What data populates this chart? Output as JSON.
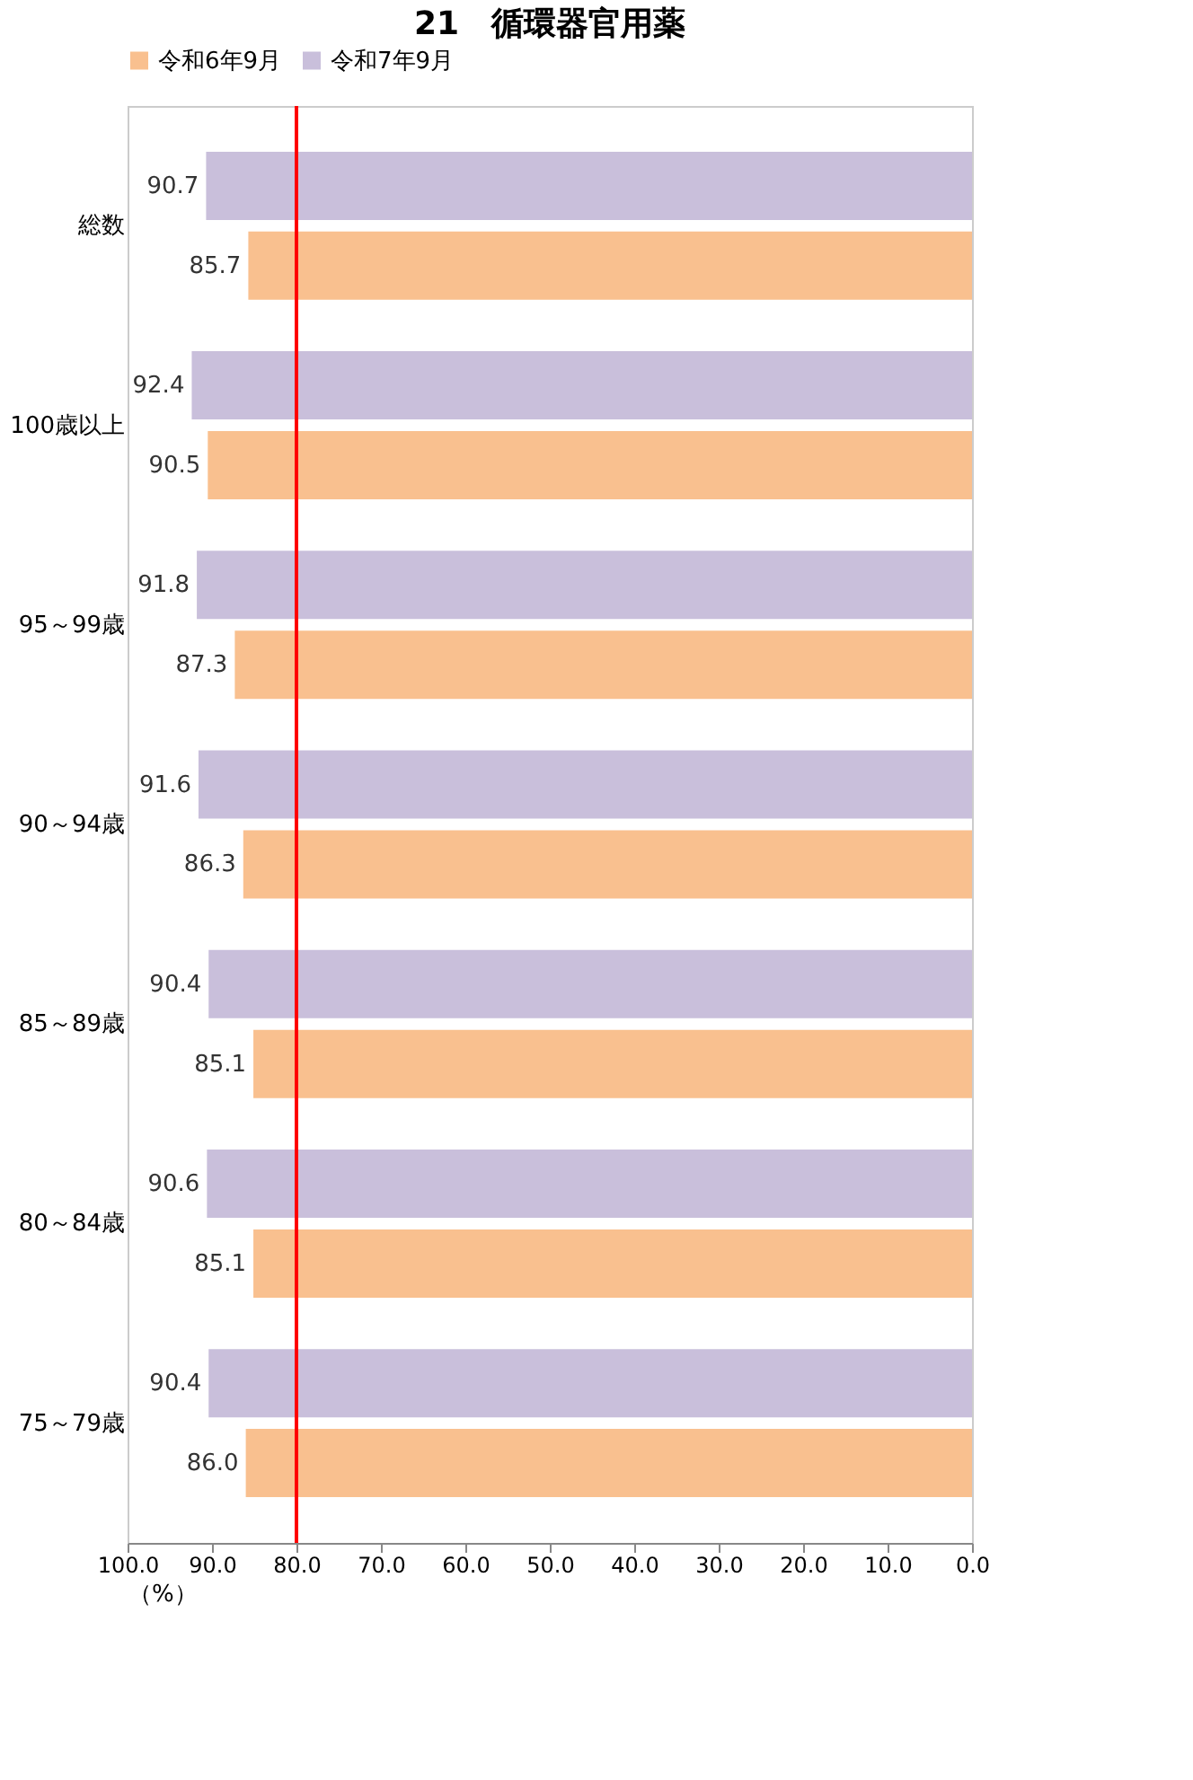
{
  "chart_data": {
    "type": "bar",
    "orientation": "horizontal",
    "title": "21　循環器官用薬",
    "xlabel": "（%）",
    "categories": [
      "総数",
      "100歳以上",
      "95～99歳",
      "90～94歳",
      "85～89歳",
      "80～84歳",
      "75～79歳"
    ],
    "series": [
      {
        "name": "令和6年9月",
        "color": "#f9c08f",
        "values": [
          85.7,
          90.5,
          87.3,
          86.3,
          85.1,
          85.1,
          86.0
        ],
        "value_labels": [
          "85.7",
          "90.5",
          "87.3",
          "86.3",
          "85.1",
          "85.1",
          "86.0"
        ]
      },
      {
        "name": "令和7年9月",
        "color": "#c9bfdb",
        "values": [
          90.7,
          92.4,
          91.8,
          91.6,
          90.4,
          90.6,
          90.4
        ],
        "value_labels": [
          "90.7",
          "92.4",
          "91.8",
          "91.6",
          "90.4",
          "90.6",
          "90.4"
        ]
      }
    ],
    "xlim": [
      100,
      0
    ],
    "xticks": [
      {
        "value": 100,
        "label": "100.0"
      },
      {
        "value": 90,
        "label": "90.0"
      },
      {
        "value": 80,
        "label": "80.0"
      },
      {
        "value": 70,
        "label": "70.0"
      },
      {
        "value": 60,
        "label": "60.0"
      },
      {
        "value": 50,
        "label": "50.0"
      },
      {
        "value": 40,
        "label": "40.0"
      },
      {
        "value": 30,
        "label": "30.0"
      },
      {
        "value": 20,
        "label": "20.0"
      },
      {
        "value": 10,
        "label": "10.0"
      },
      {
        "value": 0,
        "label": "0.0"
      }
    ],
    "ref_lines": [
      {
        "axis": "x",
        "value": 80,
        "color": "#ff0000"
      }
    ],
    "legend": "top",
    "grid": false
  }
}
